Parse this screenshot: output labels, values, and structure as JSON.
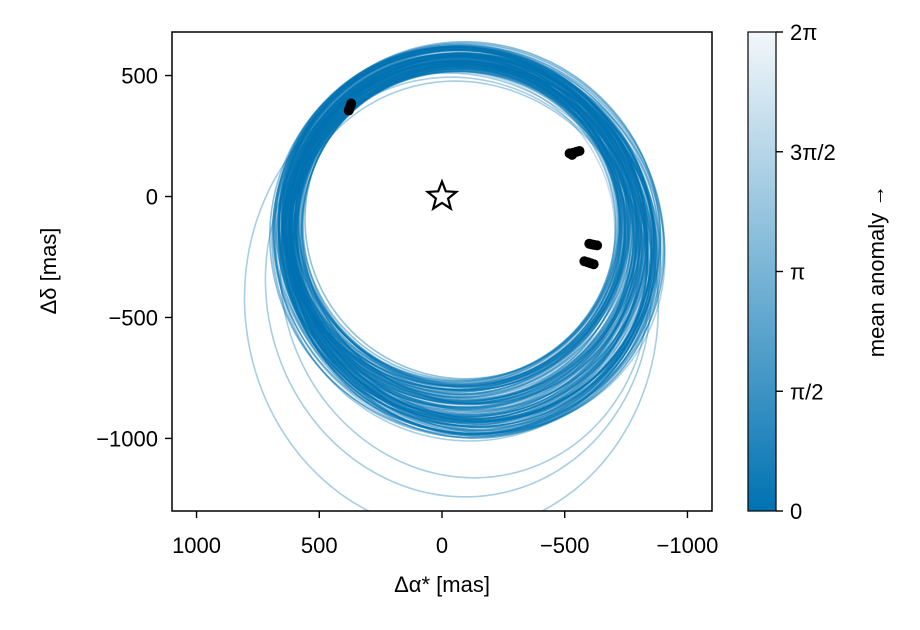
{
  "chart_data": {
    "type": "line",
    "title": "",
    "xlabel": "Δα* [mas]",
    "ylabel": "Δδ [mas]",
    "xlim": [
      1100,
      -1100
    ],
    "ylim": [
      -1300,
      680
    ],
    "xticks": [
      1000,
      500,
      0,
      -500,
      -1000
    ],
    "xtick_labels": [
      "1000",
      "500",
      "0",
      "−500",
      "−1000"
    ],
    "yticks": [
      500,
      0,
      -500,
      -1000
    ],
    "ytick_labels": [
      "500",
      "0",
      "−500",
      "−1000"
    ],
    "grid": false,
    "star_marker": {
      "x": 0,
      "y": 0
    },
    "orbit_family": {
      "count": 160,
      "typical": {
        "focus": [
          0,
          0
        ],
        "apoapsis_direction": "bottom-left",
        "min_y": -850,
        "max_y": 560
      },
      "outliers_min_y": [
        -1060,
        -1130,
        -1270
      ]
    },
    "observations": [
      {
        "x": 375,
        "y": 370
      },
      {
        "x": 378,
        "y": 362
      },
      {
        "x": 372,
        "y": 376
      },
      {
        "x": 380,
        "y": 355
      },
      {
        "x": 370,
        "y": 384
      },
      {
        "x": -520,
        "y": 178
      },
      {
        "x": -535,
        "y": 181
      },
      {
        "x": -548,
        "y": 185
      },
      {
        "x": -560,
        "y": 188
      },
      {
        "x": -530,
        "y": 172
      },
      {
        "x": -600,
        "y": -195
      },
      {
        "x": -610,
        "y": -198
      },
      {
        "x": -620,
        "y": -200
      },
      {
        "x": -632,
        "y": -202
      },
      {
        "x": -580,
        "y": -268
      },
      {
        "x": -594,
        "y": -272
      },
      {
        "x": -606,
        "y": -276
      },
      {
        "x": -618,
        "y": -280
      }
    ],
    "colorbar": {
      "label": "mean anomaly →",
      "range": [
        0,
        6.2832
      ],
      "ticks": [
        0,
        1.5708,
        3.1416,
        4.7124,
        6.2832
      ],
      "tick_labels": [
        "0",
        "π/2",
        "π",
        "3π/2",
        "2π"
      ],
      "color_low": "#0072b2",
      "color_high": "#f2f7fa"
    },
    "colors": {
      "orbit": "#0072b2",
      "observation": "#000000",
      "star": "#000000"
    }
  }
}
